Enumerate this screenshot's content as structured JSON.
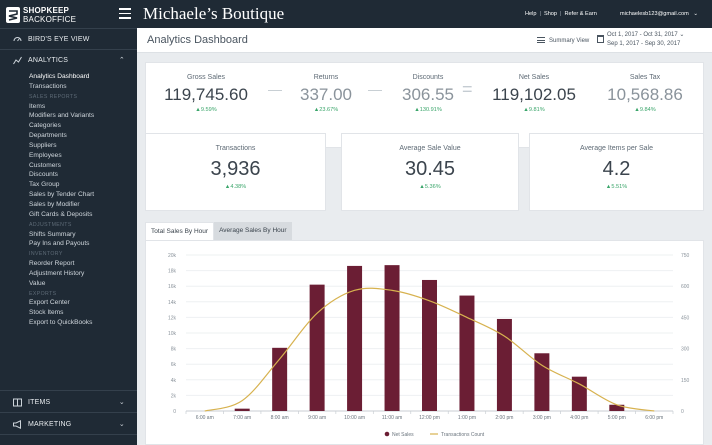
{
  "brand": {
    "name_top": "SHOPKEEP",
    "name_bottom": "BACKOFFICE"
  },
  "header": {
    "store_name": "Michaele’s Boutique",
    "links": [
      "Help",
      "Shop",
      "Refer & Earn"
    ],
    "account": "michaelesb123@gmail.com"
  },
  "sidebar": {
    "birds_eye": "BIRD'S EYE VIEW",
    "analytics": "ANALYTICS",
    "items_section": "ITEMS",
    "marketing": "MARKETING",
    "entries": [
      {
        "type": "item",
        "label": "Analytics Dashboard",
        "active": true
      },
      {
        "type": "item",
        "label": "Transactions"
      },
      {
        "type": "group",
        "label": "Sales Reports"
      },
      {
        "type": "item",
        "label": "Items"
      },
      {
        "type": "item",
        "label": "Modifiers and Variants"
      },
      {
        "type": "item",
        "label": "Categories"
      },
      {
        "type": "item",
        "label": "Departments"
      },
      {
        "type": "item",
        "label": "Suppliers"
      },
      {
        "type": "item",
        "label": "Employees"
      },
      {
        "type": "item",
        "label": "Customers"
      },
      {
        "type": "item",
        "label": "Discounts"
      },
      {
        "type": "item",
        "label": "Tax Group"
      },
      {
        "type": "item",
        "label": "Sales by Tender Chart"
      },
      {
        "type": "item",
        "label": "Sales by Modifier"
      },
      {
        "type": "item",
        "label": "Gift Cards & Deposits"
      },
      {
        "type": "group",
        "label": "Adjustments"
      },
      {
        "type": "item",
        "label": "Shifts Summary"
      },
      {
        "type": "item",
        "label": "Pay Ins and Payouts"
      },
      {
        "type": "group",
        "label": "Inventory"
      },
      {
        "type": "item",
        "label": "Reorder Report"
      },
      {
        "type": "item",
        "label": "Adjustment History"
      },
      {
        "type": "item",
        "label": "Value"
      },
      {
        "type": "group",
        "label": "Exports"
      },
      {
        "type": "item",
        "label": "Export Center"
      },
      {
        "type": "item",
        "label": "Stock Items"
      },
      {
        "type": "item",
        "label": "Export to QuickBooks"
      }
    ]
  },
  "page": {
    "title": "Analytics Dashboard",
    "summary_view": "Summary View",
    "date_range_1": "Oct 1, 2017 - Oct 31, 2017",
    "date_range_2": "Sep 1, 2017 - Sep 30, 2017"
  },
  "kpis": [
    {
      "label": "Gross Sales",
      "value": "119,745.60",
      "change": "▲9.59%"
    },
    {
      "label": "Returns",
      "value": "337.00",
      "change": "▲23.67%"
    },
    {
      "label": "Discounts",
      "value": "306.55",
      "change": "▲130.91%"
    },
    {
      "label": "Net Sales",
      "value": "119,102.05",
      "change": "▲9.81%"
    },
    {
      "label": "Sales Tax",
      "value": "10,568.86",
      "change": "▲9.84%"
    }
  ],
  "operators": [
    "—",
    "—",
    "="
  ],
  "kpis2": [
    {
      "label": "Transactions",
      "value": "3,936",
      "change": "▲4.38%"
    },
    {
      "label": "Average Sale Value",
      "value": "30.45",
      "change": "▲5.36%"
    },
    {
      "label": "Average Items per Sale",
      "value": "4.2",
      "change": "▲5.51%"
    }
  ],
  "tabs": {
    "active": "Total Sales By Hour",
    "inactive": "Average Sales By Hour"
  },
  "colors": {
    "bar": "#6b1e34",
    "line": "#d7b24f",
    "sidebar": "#1f2a35",
    "positive": "#3aa56a"
  },
  "chart_data": {
    "type": "bar",
    "categories": [
      "6:00 am",
      "7:00 am",
      "8:00 am",
      "9:00 am",
      "10:00 am",
      "11:00 am",
      "12:00 pm",
      "1:00 pm",
      "2:00 pm",
      "3:00 pm",
      "4:00 pm",
      "5:00 pm",
      "6:00 pm"
    ],
    "series": [
      {
        "name": "Net Sales",
        "axis": "left",
        "type": "bar",
        "values": [
          0,
          300,
          8100,
          16200,
          18600,
          18700,
          16800,
          14800,
          11800,
          7400,
          4400,
          800,
          0
        ]
      },
      {
        "name": "Transactions Count",
        "axis": "right",
        "type": "line",
        "values": [
          0,
          50,
          250,
          470,
          580,
          580,
          530,
          450,
          360,
          220,
          130,
          30,
          0
        ]
      }
    ],
    "y_left": {
      "min": 0,
      "max": 20000,
      "ticks": [
        "0",
        "2k",
        "4k",
        "6k",
        "8k",
        "10k",
        "12k",
        "14k",
        "16k",
        "18k",
        "20k"
      ]
    },
    "y_right": {
      "min": 0,
      "max": 750,
      "ticks": [
        "0",
        "150",
        "300",
        "450",
        "600",
        "750"
      ]
    },
    "grid": true,
    "legend": "bottom-center"
  }
}
